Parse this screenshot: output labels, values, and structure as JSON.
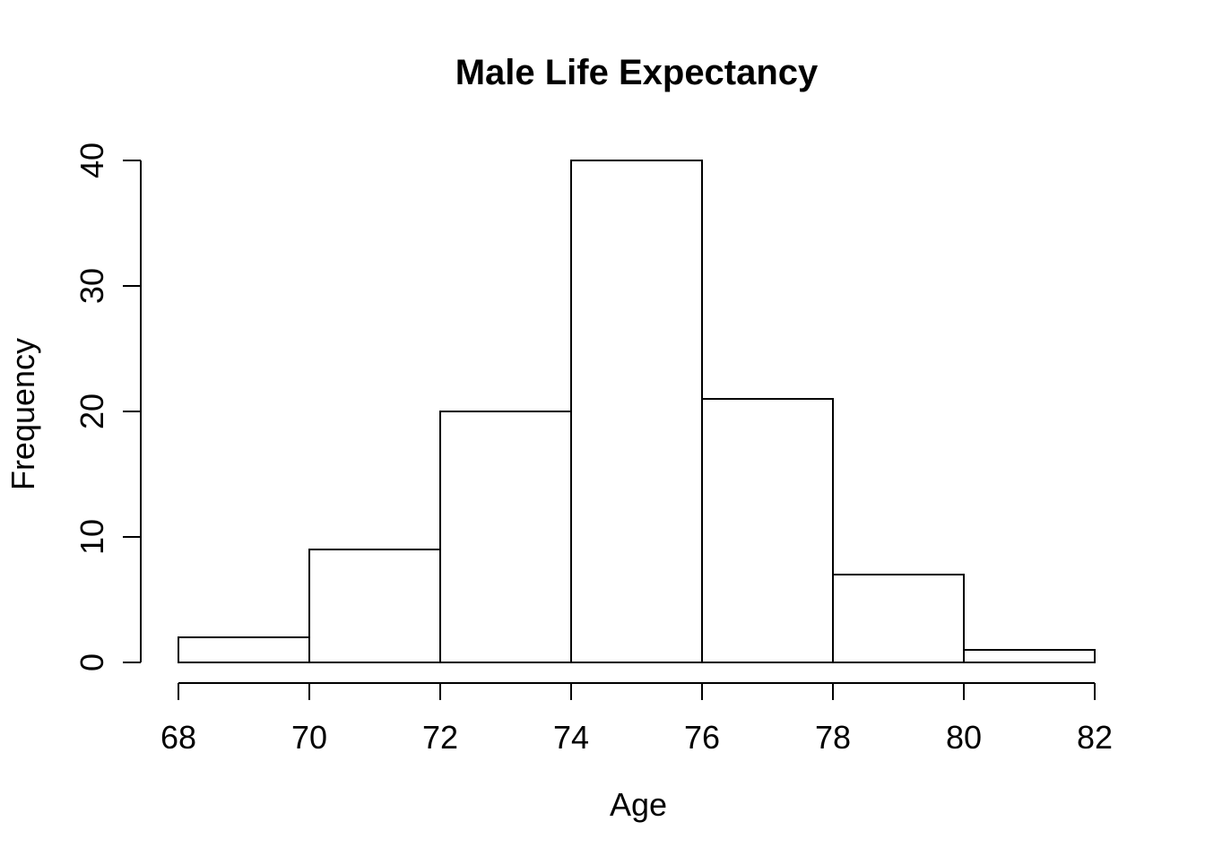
{
  "page": {
    "background_color": "#ffffff",
    "foreground_color": "#000000"
  },
  "chart_data": {
    "type": "bar",
    "subtype": "histogram",
    "title": "Male Life Expectancy",
    "xlabel": "Age",
    "ylabel": "Frequency",
    "bin_edges": [
      68,
      70,
      72,
      74,
      76,
      78,
      80,
      82
    ],
    "categories": [
      "68-70",
      "70-72",
      "72-74",
      "74-76",
      "76-78",
      "78-80",
      "80-82"
    ],
    "values": [
      2,
      9,
      20,
      40,
      21,
      7,
      1
    ],
    "x_ticks": [
      68,
      70,
      72,
      74,
      76,
      78,
      80,
      82
    ],
    "y_ticks": [
      0,
      10,
      20,
      30,
      40
    ],
    "xlim": [
      68,
      82
    ],
    "ylim": [
      0,
      40
    ],
    "bar_fill": "#ffffff",
    "bar_stroke": "#000000",
    "axis_color": "#000000",
    "grid": false,
    "legend_position": "none"
  }
}
